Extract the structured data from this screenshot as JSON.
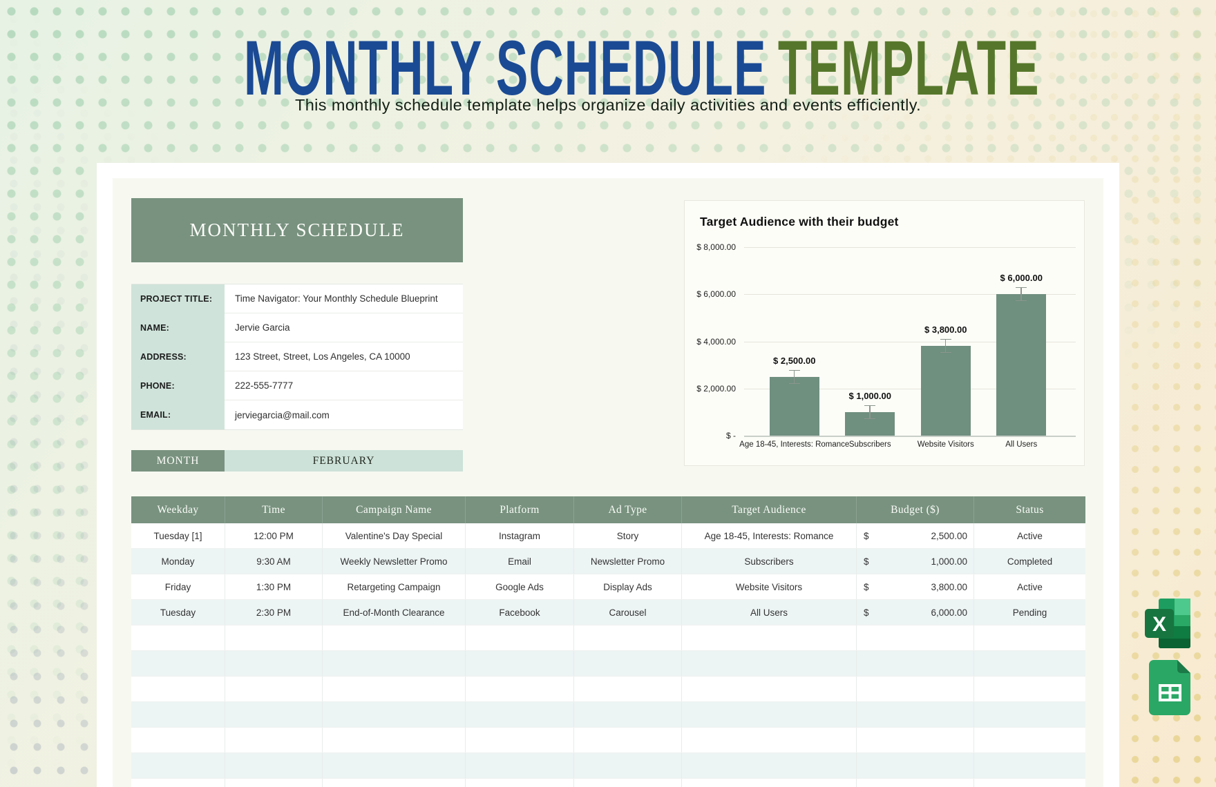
{
  "page": {
    "title_primary": "MONTHLY SCHEDULE",
    "title_accent": "TEMPLATE",
    "subtitle": "This monthly schedule template helps organize daily activities and events efficiently."
  },
  "banner": {
    "title": "MONTHLY SCHEDULE"
  },
  "details": {
    "rows": [
      {
        "label": "PROJECT TITLE:",
        "value": "Time Navigator: Your Monthly Schedule Blueprint"
      },
      {
        "label": "NAME:",
        "value": "Jervie Garcia"
      },
      {
        "label": "ADDRESS:",
        "value": "123 Street, Street, Los Angeles, CA 10000"
      },
      {
        "label": "PHONE:",
        "value": "222-555-7777"
      },
      {
        "label": "EMAIL:",
        "value": "jerviegarcia@mail.com"
      }
    ]
  },
  "month": {
    "label": "MONTH",
    "value": "FEBRUARY"
  },
  "chart_data": {
    "type": "bar",
    "title": "Target Audience with their budget",
    "categories": [
      "Age 18-45, Interests: Romance",
      "Subscribers",
      "Website Visitors",
      "All Users"
    ],
    "values": [
      2500,
      1000,
      3800,
      6000
    ],
    "data_labels": [
      "$ 2,500.00",
      "$ 1,000.00",
      "$ 3,800.00",
      "$ 6,000.00"
    ],
    "y_ticks": [
      {
        "value": 0,
        "label": "$ -"
      },
      {
        "value": 2000,
        "label": "$ 2,000.00"
      },
      {
        "value": 4000,
        "label": "$ 4,000.00"
      },
      {
        "value": 6000,
        "label": "$ 6,000.00"
      },
      {
        "value": 8000,
        "label": "$ 8,000.00"
      }
    ],
    "ylim": [
      0,
      8000
    ],
    "xlabel": "",
    "ylabel": "",
    "grid": true,
    "legend": false,
    "error_bars": true,
    "bar_color": "#6f8f7f"
  },
  "schedule_table": {
    "columns": [
      "Weekday",
      "Time",
      "Campaign Name",
      "Platform",
      "Ad Type",
      "Target Audience",
      "Budget ($)",
      "Status"
    ],
    "currency_symbol": "$",
    "rows": [
      {
        "weekday": "Tuesday [1]",
        "time": "12:00 PM",
        "campaign_name": "Valentine's Day Special",
        "platform": "Instagram",
        "ad_type": "Story",
        "target_audience": "Age 18-45, Interests: Romance",
        "budget": "2,500.00",
        "status": "Active"
      },
      {
        "weekday": "Monday",
        "time": "9:30 AM",
        "campaign_name": "Weekly Newsletter Promo",
        "platform": "Email",
        "ad_type": "Newsletter Promo",
        "target_audience": "Subscribers",
        "budget": "1,000.00",
        "status": "Completed"
      },
      {
        "weekday": "Friday",
        "time": "1:30 PM",
        "campaign_name": "Retargeting Campaign",
        "platform": "Google Ads",
        "ad_type": "Display Ads",
        "target_audience": "Website Visitors",
        "budget": "3,800.00",
        "status": "Active"
      },
      {
        "weekday": "Tuesday",
        "time": "2:30 PM",
        "campaign_name": "End-of-Month Clearance",
        "platform": "Facebook",
        "ad_type": "Carousel",
        "target_audience": "All Users",
        "budget": "6,000.00",
        "status": "Pending"
      }
    ],
    "empty_row_count": 7
  },
  "icons": {
    "excel_letter": "X"
  },
  "colors": {
    "title_blue": "#1b4a94",
    "title_green": "#56772b",
    "brand_green_dark": "#78927f",
    "brand_green_light": "#cfe3da",
    "table_alt_row": "#edf4f4",
    "bar_green": "#6f8f7f"
  }
}
